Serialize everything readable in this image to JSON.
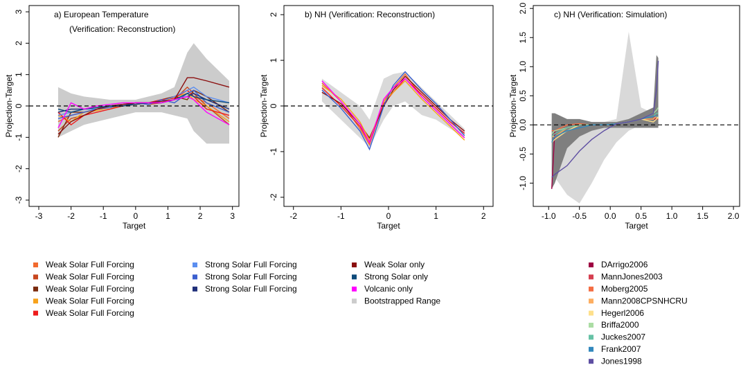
{
  "chart_data": [
    {
      "type": "line",
      "title": "a) European Temperature",
      "subtitle": "(Verification: Reconstruction)",
      "x_label": "Target",
      "y_label": "Projection-Target",
      "xlim": [
        -3.3,
        3.2
      ],
      "xticks": [
        -3,
        -2,
        -1,
        0,
        1,
        2,
        3
      ],
      "ylim": [
        -3.2,
        3.2
      ],
      "yticks": [
        -3,
        -2,
        -1,
        0,
        1,
        2,
        3
      ],
      "hline": 0,
      "x": [
        -2.4,
        -2,
        -1.6,
        -1.2,
        -0.8,
        -0.4,
        0,
        0.4,
        0.8,
        1.2,
        1.6,
        1.8,
        2.2,
        2.9
      ],
      "bands": [
        {
          "name": "Bootstrapped Range",
          "color": "#cccccc",
          "lower": [
            -1.0,
            -0.8,
            -0.6,
            -0.5,
            -0.4,
            -0.3,
            -0.2,
            -0.2,
            -0.2,
            -0.3,
            -0.4,
            -0.8,
            -1.2,
            -1.2
          ],
          "upper": [
            0.6,
            0.4,
            0.3,
            0.25,
            0.2,
            0.2,
            0.2,
            0.3,
            0.4,
            0.6,
            1.7,
            2.0,
            1.5,
            0.8
          ]
        }
      ],
      "series": [
        {
          "name": "Weak Solar Full Forcing",
          "color": "#f26a2e",
          "values": [
            -0.5,
            -0.3,
            -0.2,
            -0.1,
            -0.05,
            0,
            0.05,
            0.1,
            0.15,
            0.3,
            0.5,
            0.3,
            0.1,
            -0.4
          ]
        },
        {
          "name": "Weak Solar Full Forcing",
          "color": "#c8461e",
          "values": [
            -0.8,
            -0.4,
            -0.3,
            -0.1,
            0,
            0,
            0.1,
            0.05,
            0.1,
            0.2,
            0.6,
            0.4,
            0.0,
            -0.6
          ]
        },
        {
          "name": "Weak Solar Full Forcing",
          "color": "#7a2a0e",
          "values": [
            -1.0,
            -0.2,
            -0.2,
            -0.1,
            0,
            0.05,
            0.1,
            0.1,
            0.2,
            0.3,
            0.2,
            0.5,
            0.3,
            -0.2
          ]
        },
        {
          "name": "Weak Solar Full Forcing",
          "color": "#f7a21b",
          "values": [
            -0.3,
            -0.5,
            -0.2,
            -0.15,
            -0.05,
            0,
            0.05,
            0.1,
            0.1,
            0.3,
            0.4,
            0.2,
            0.0,
            -0.5
          ]
        },
        {
          "name": "Weak Solar Full Forcing",
          "color": "#ee1c1c",
          "values": [
            -0.2,
            -0.6,
            -0.3,
            -0.2,
            -0.1,
            0,
            0.05,
            0.1,
            0.2,
            0.25,
            0.5,
            0.3,
            -0.1,
            -0.3
          ]
        },
        {
          "name": "Strong Solar Full Forcing",
          "color": "#5b8ef0",
          "values": [
            -0.3,
            -0.2,
            -0.1,
            -0.1,
            0,
            0.05,
            0.1,
            0.1,
            0.15,
            0.3,
            0.5,
            0.6,
            0.3,
            0.1
          ]
        },
        {
          "name": "Strong Solar Full Forcing",
          "color": "#3b5fcf",
          "values": [
            -0.4,
            -0.3,
            -0.2,
            -0.1,
            -0.05,
            0.05,
            0.1,
            0.05,
            0.2,
            0.1,
            0.4,
            0.5,
            0.1,
            -0.2
          ]
        },
        {
          "name": "Strong Solar Full Forcing",
          "color": "#1f2f7a",
          "values": [
            -0.2,
            -0.1,
            -0.1,
            -0.05,
            0,
            0,
            0.1,
            0.1,
            0.1,
            0.2,
            0.3,
            0.4,
            0.2,
            -0.1
          ]
        },
        {
          "name": "Weak Solar only",
          "color": "#8b0e0e",
          "values": [
            -0.9,
            -0.5,
            -0.3,
            -0.1,
            0,
            0.05,
            0.1,
            0.1,
            0.15,
            0.2,
            0.9,
            0.9,
            0.8,
            0.6
          ]
        },
        {
          "name": "Strong Solar only",
          "color": "#0d4a7a",
          "values": [
            -0.1,
            -0.2,
            -0.1,
            -0.05,
            0,
            0,
            0.05,
            0.1,
            0.1,
            0.2,
            0.4,
            0.3,
            0.2,
            0.1
          ]
        },
        {
          "name": "Volcanic only",
          "color": "#ff00ff",
          "values": [
            -0.7,
            0.1,
            -0.1,
            0,
            0.05,
            0.1,
            0.1,
            0.1,
            0.1,
            0.2,
            0.3,
            0.2,
            -0.2,
            -0.6
          ]
        }
      ]
    },
    {
      "type": "line",
      "title": "b) NH (Verification: Reconstruction)",
      "x_label": "Target",
      "y_label": "Projection-Target",
      "xlim": [
        -2.2,
        2.2
      ],
      "xticks": [
        -2,
        -1,
        0,
        1,
        2
      ],
      "ylim": [
        -2.2,
        2.2
      ],
      "yticks": [
        -2,
        -1,
        0,
        1,
        2
      ],
      "hline": 0,
      "x": [
        -1.4,
        -1,
        -0.6,
        -0.4,
        -0.1,
        0.1,
        0.35,
        0.7,
        1,
        1.3,
        1.6
      ],
      "bands": [
        {
          "color": "#d9d9d9",
          "lower": [
            0.1,
            -0.3,
            -0.7,
            -0.9,
            -0.3,
            0.0,
            0.1,
            -0.2,
            -0.3,
            -0.5,
            -0.7
          ],
          "upper": [
            0.6,
            0.3,
            0.0,
            -0.3,
            0.6,
            0.7,
            0.75,
            0.4,
            0.1,
            -0.2,
            -0.5
          ]
        }
      ],
      "series": [
        {
          "color": "#f26a2e",
          "values": [
            0.5,
            0.1,
            -0.5,
            -0.85,
            0.1,
            0.4,
            0.7,
            0.2,
            -0.1,
            -0.4,
            -0.7
          ]
        },
        {
          "color": "#ee1c1c",
          "values": [
            0.4,
            0.0,
            -0.45,
            -0.8,
            0.05,
            0.3,
            0.6,
            0.25,
            -0.05,
            -0.35,
            -0.6
          ]
        },
        {
          "color": "#8b0e0e",
          "values": [
            0.3,
            0.05,
            -0.4,
            -0.7,
            0.0,
            0.35,
            0.65,
            0.3,
            0.0,
            -0.3,
            -0.55
          ]
        },
        {
          "color": "#f7a21b",
          "values": [
            0.45,
            0.15,
            -0.35,
            -0.75,
            0.1,
            0.3,
            0.55,
            0.15,
            -0.15,
            -0.45,
            -0.75
          ]
        },
        {
          "color": "#3b5fcf",
          "values": [
            0.35,
            -0.05,
            -0.55,
            -0.95,
            0.0,
            0.45,
            0.75,
            0.35,
            0.05,
            -0.3,
            -0.65
          ]
        },
        {
          "color": "#ff00ff",
          "values": [
            0.55,
            0.1,
            -0.4,
            -0.8,
            0.15,
            0.4,
            0.6,
            0.2,
            -0.1,
            -0.4,
            -0.7
          ]
        }
      ]
    },
    {
      "type": "line",
      "title": "c) NH (Verification: Simulation)",
      "x_label": "Target",
      "y_label": "Projection-Target",
      "xlim": [
        -1.25,
        2.1
      ],
      "xticks": [
        {
          "value": -1,
          "label": "-1.0"
        },
        -0.5,
        {
          "value": 0,
          "label": "0.0"
        },
        0.5,
        {
          "value": 1,
          "label": "1.0"
        },
        1.5,
        {
          "value": 2,
          "label": "2.0"
        }
      ],
      "ylim": [
        -1.4,
        2.05
      ],
      "yticks": [
        {
          "value": -1,
          "label": "-1.0"
        },
        -0.5,
        {
          "value": 0,
          "label": "0.0"
        },
        0.5,
        {
          "value": 1,
          "label": "1.0"
        },
        1.5,
        {
          "value": 2,
          "label": "2.0"
        }
      ],
      "hline": 0,
      "x": [
        -0.95,
        -0.9,
        -0.7,
        -0.5,
        -0.3,
        -0.1,
        0.1,
        0.3,
        0.5,
        0.7,
        0.75,
        0.78
      ],
      "bands": [
        {
          "color": "#d9d9d9",
          "lower": [
            -0.8,
            -0.9,
            -1.2,
            -1.35,
            -1.0,
            -0.6,
            -0.3,
            -0.1,
            0,
            0,
            0,
            0
          ],
          "upper": [
            0.1,
            0.1,
            0.05,
            0.05,
            0.05,
            0.05,
            0.1,
            1.6,
            0.3,
            0.2,
            0.2,
            0.2
          ]
        },
        {
          "color": "#7f7f7f",
          "lower": [
            -1.1,
            -1.0,
            -0.4,
            -0.2,
            -0.1,
            -0.05,
            -0.05,
            -0.05,
            -0.05,
            -0.05,
            -0.05,
            -0.05
          ],
          "upper": [
            0.2,
            0.2,
            0.1,
            0.1,
            0.05,
            0.05,
            0.05,
            0.1,
            0.2,
            0.3,
            1.2,
            1.15
          ]
        }
      ],
      "series": [
        {
          "name": "DArrigo2006",
          "color": "#9e0142",
          "values": [
            -1.1,
            -0.1,
            -0.05,
            0,
            0,
            0,
            0.02,
            0.05,
            0.1,
            0.1,
            0.1,
            0.1
          ]
        },
        {
          "name": "MannJones2003",
          "color": "#d53e4f",
          "values": [
            -0.2,
            -0.15,
            -0.05,
            0,
            0,
            0,
            0.02,
            0.05,
            0.1,
            0.15,
            0.1,
            0.1
          ]
        },
        {
          "name": "Moberg2005",
          "color": "#f46d43",
          "values": [
            -0.1,
            -0.1,
            0,
            0.02,
            0,
            0,
            0.02,
            0.05,
            0.1,
            0.1,
            0.15,
            0.15
          ]
        },
        {
          "name": "Mann2008CPSNHCRU",
          "color": "#fdae61",
          "values": [
            -0.2,
            -0.2,
            -0.05,
            0,
            0,
            0,
            0.02,
            0.05,
            0.1,
            0.1,
            0.15,
            0.1
          ]
        },
        {
          "name": "Hegerl2006",
          "color": "#fee08b",
          "values": [
            -0.3,
            -0.25,
            -0.1,
            0,
            0,
            0,
            0.02,
            0.05,
            0.1,
            0.05,
            0.1,
            0.15
          ]
        },
        {
          "name": "Briffa2000",
          "color": "#abdda4",
          "values": [
            -0.15,
            -0.1,
            -0.05,
            0,
            0,
            0,
            0.02,
            0.05,
            0.1,
            0.2,
            0.25,
            0.3
          ]
        },
        {
          "name": "Juckes2007",
          "color": "#66c2a5",
          "values": [
            -0.2,
            -0.15,
            -0.05,
            0,
            0,
            0,
            0.02,
            0.05,
            0.1,
            0.15,
            0.2,
            0.2
          ]
        },
        {
          "name": "Frank2007",
          "color": "#3288bd",
          "values": [
            -0.3,
            -0.2,
            -0.1,
            -0.05,
            0,
            0,
            0.02,
            0.05,
            0.1,
            0.15,
            0.15,
            0.15
          ]
        },
        {
          "name": "Jones1998",
          "color": "#5e4fa2",
          "values": [
            -0.9,
            -0.85,
            -0.7,
            -0.45,
            -0.25,
            -0.1,
            0.02,
            0.05,
            0.1,
            0.2,
            0.6,
            1.1
          ]
        }
      ]
    }
  ]
}
